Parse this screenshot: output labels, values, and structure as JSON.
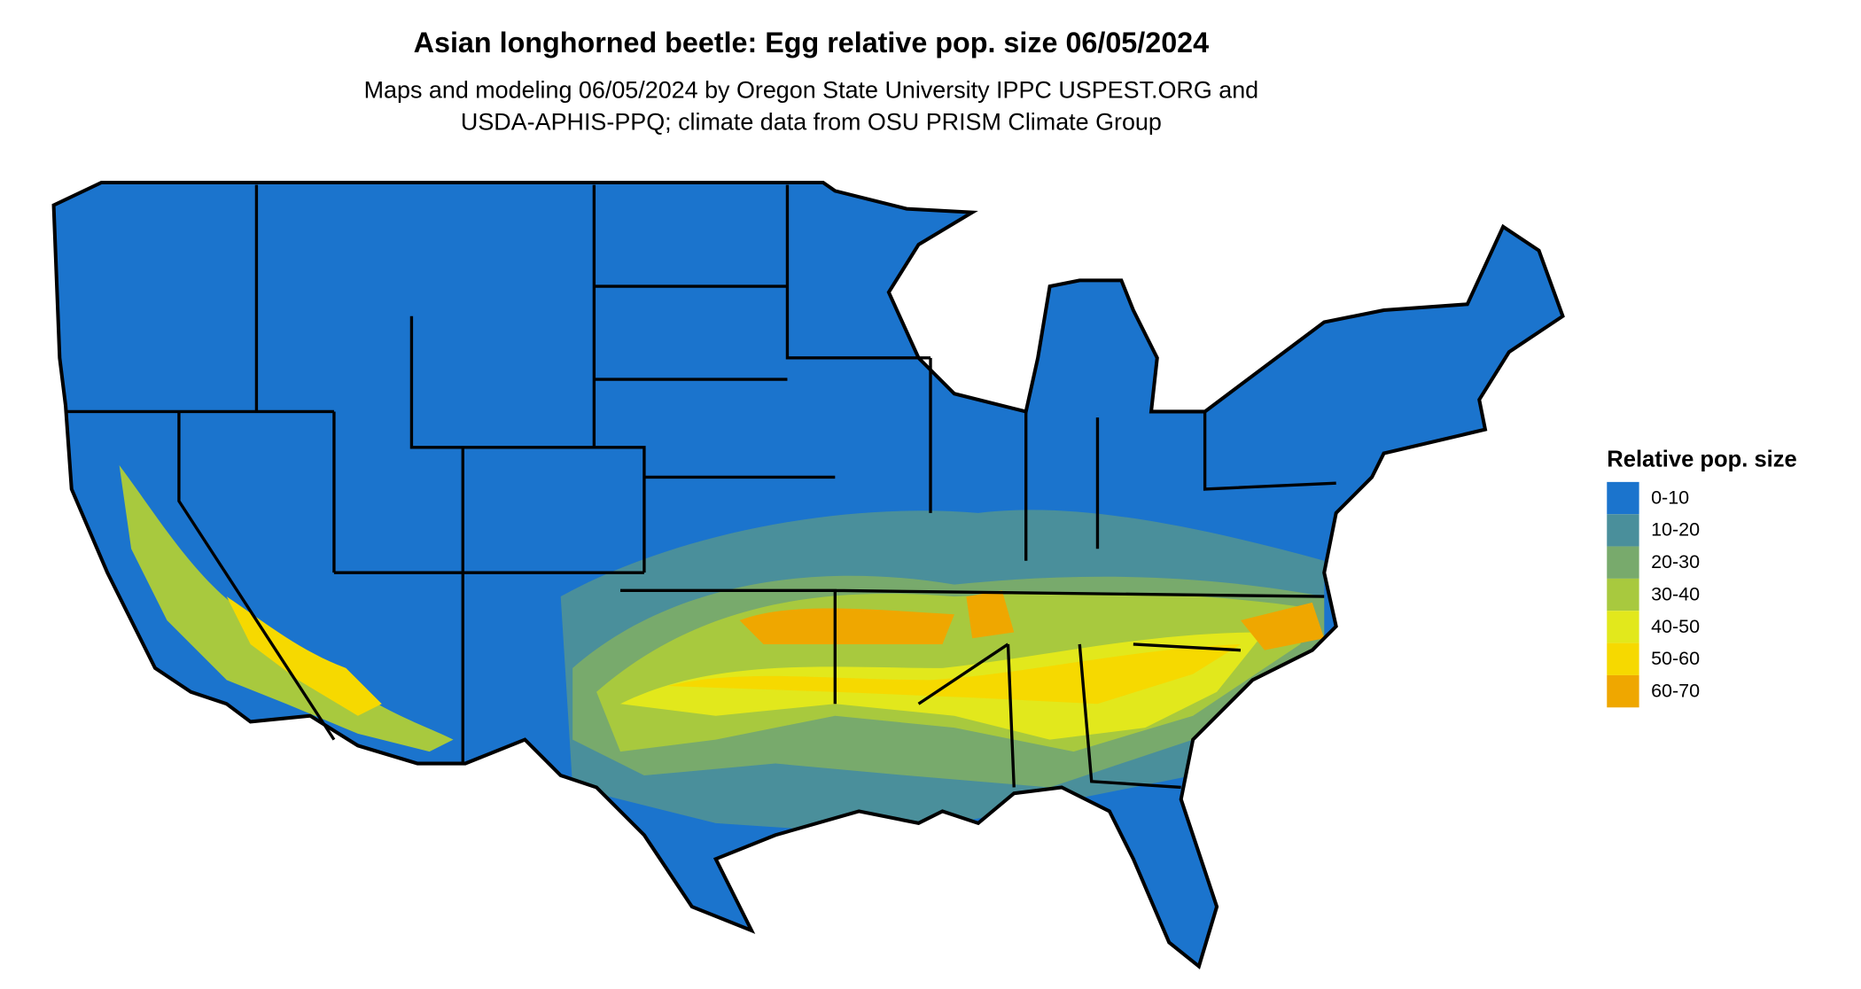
{
  "title": "Asian longhorned beetle: Egg relative pop. size 06/05/2024",
  "subtitle": [
    "Maps and modeling 06/05/2024 by Oregon State University IPPC USPEST.ORG and",
    "USDA-APHIS-PPQ; climate data from OSU PRISM Climate Group"
  ],
  "legend": {
    "title": "Relative pop. size",
    "items": [
      {
        "label": "0-10",
        "color": "#1b74cd"
      },
      {
        "label": "10-20",
        "color": "#4a8f9b"
      },
      {
        "label": "20-30",
        "color": "#78aa6c"
      },
      {
        "label": "30-40",
        "color": "#a8c93e"
      },
      {
        "label": "40-50",
        "color": "#e2e81c"
      },
      {
        "label": "50-60",
        "color": "#f6d900"
      },
      {
        "label": "60-70",
        "color": "#efa700"
      }
    ]
  }
}
